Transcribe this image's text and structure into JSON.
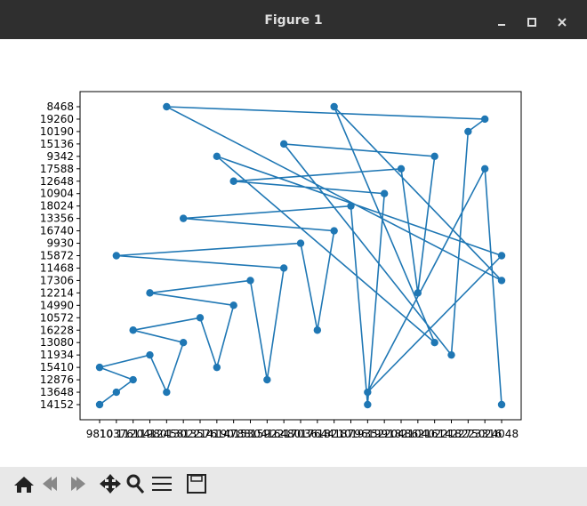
{
  "window_title": "Figure 1",
  "chart_data": {
    "type": "line",
    "color": "#1f77b4",
    "marker": "o",
    "x": [
      "9810",
      "10376",
      "11204",
      "9810",
      "11980",
      "12458",
      "13022",
      "11204",
      "13576",
      "14190",
      "14788",
      "11980",
      "15304",
      "15922",
      "16480",
      "10376",
      "17036",
      "17644",
      "18210",
      "13022",
      "18796",
      "19352",
      "19918",
      "14788",
      "20486",
      "21040",
      "21614",
      "16480",
      "22182",
      "22750",
      "23316",
      "12458",
      "24048",
      "18210",
      "21614",
      "14190",
      "24048",
      "19352",
      "23316",
      "24048"
    ],
    "y": [
      "14152",
      "13648",
      "12876",
      "15410",
      "11934",
      "13648",
      "13080",
      "16228",
      "10572",
      "15410",
      "14990",
      "12214",
      "17306",
      "12876",
      "11468",
      "15872",
      "9930",
      "16228",
      "16740",
      "13356",
      "18024",
      "14152",
      "10904",
      "12648",
      "17588",
      "12214",
      "9342",
      "15136",
      "11934",
      "10190",
      "19260",
      "8468",
      "17306",
      "8468",
      "13080",
      "9342",
      "15872",
      "13648",
      "17588",
      "14152"
    ]
  }
}
